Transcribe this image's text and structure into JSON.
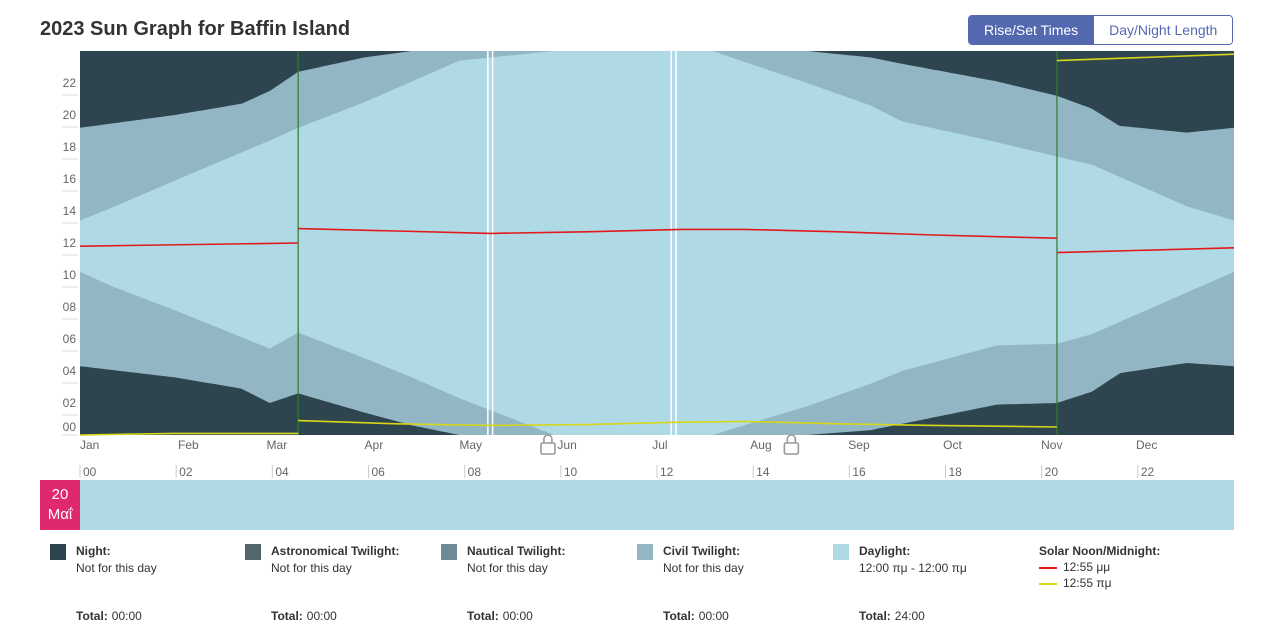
{
  "title": "2023 Sun Graph for Baffin Island",
  "toggle": {
    "rise_set": "Rise/Set Times",
    "day_night": "Day/Night Length"
  },
  "colors": {
    "night": "#2e444f",
    "astro": "#56666f",
    "nautical": "#6d8a96",
    "civil": "#93b6c5",
    "daylight": "#b0d9e6",
    "noon": "#e01a1a",
    "midnight": "#d6d61a",
    "dst": "#2e7d2e",
    "date_accent": "#e0286e"
  },
  "chart_data": {
    "type": "area",
    "title": "2023 Sun Graph for Baffin Island",
    "y_ticks": [
      "00",
      "02",
      "04",
      "06",
      "08",
      "10",
      "12",
      "14",
      "16",
      "18",
      "20",
      "22"
    ],
    "ylim": [
      0,
      24
    ],
    "month_labels": [
      "Jan",
      "Feb",
      "Mar",
      "Apr",
      "May",
      "Jun",
      "Jul",
      "Aug",
      "Sep",
      "Oct",
      "Nov",
      "Dec"
    ],
    "hour_ticks": [
      "00",
      "02",
      "04",
      "06",
      "08",
      "10",
      "12",
      "14",
      "16",
      "18",
      "20",
      "22"
    ],
    "dst_start_day": 69,
    "dst_end_day": 309,
    "series": [
      {
        "name": "Night",
        "x_day": [
          0,
          30,
          60,
          69,
          90,
          120,
          135,
          150,
          172,
          190,
          210,
          230,
          260,
          290,
          309,
          320,
          350,
          365
        ],
        "dawn": [
          6.5,
          5.6,
          4.5,
          5.0,
          3.9,
          2.8,
          1.5,
          0,
          0,
          0,
          0,
          1.4,
          2.9,
          4.5,
          4.6,
          5.6,
          6.6,
          6.6
        ],
        "dusk": [
          17.0,
          18.2,
          19.3,
          20.4,
          21.3,
          22.8,
          23.7,
          24,
          24,
          24,
          24,
          22.6,
          21.3,
          19.9,
          18.7,
          17.7,
          16.8,
          17.0
        ]
      },
      {
        "name": "Astronomical Twilight",
        "x_day": [
          0,
          30,
          60,
          69,
          90,
          115,
          130,
          150,
          172,
          200,
          225,
          240,
          260,
          290,
          309,
          320,
          350,
          365
        ],
        "dawn": [
          5.6,
          4.8,
          3.5,
          4.2,
          3.0,
          1.5,
          0,
          0,
          0,
          0,
          0,
          1.0,
          2.3,
          3.6,
          3.7,
          4.8,
          5.7,
          5.6
        ],
        "dusk": [
          18.0,
          19.0,
          20.2,
          21.3,
          22.2,
          23.8,
          24,
          24,
          24,
          24,
          24,
          23.0,
          21.8,
          20.6,
          19.5,
          18.6,
          17.8,
          18.0
        ]
      },
      {
        "name": "Nautical Twilight",
        "x_day": [
          0,
          30,
          60,
          69,
          90,
          110,
          125,
          150,
          172,
          200,
          230,
          245,
          260,
          290,
          309,
          320,
          350,
          365
        ],
        "dawn": [
          4.3,
          3.6,
          2.6,
          3.4,
          2.2,
          0.9,
          0,
          0,
          0,
          0,
          0,
          0.5,
          1.6,
          2.8,
          2.9,
          3.6,
          4.5,
          4.3
        ],
        "dusk": [
          19.2,
          20.0,
          21.0,
          22.0,
          23.0,
          24,
          24,
          24,
          24,
          24,
          24,
          23.6,
          22.4,
          21.3,
          20.3,
          19.5,
          18.9,
          19.2
        ]
      },
      {
        "name": "Civil Twilight",
        "x_day": [
          0,
          15,
          30,
          60,
          69,
          90,
          105,
          120,
          150,
          172,
          200,
          230,
          250,
          260,
          290,
          309,
          320,
          350,
          365
        ],
        "dawn": [
          7.8,
          6.2,
          5.0,
          2.0,
          2.6,
          1.4,
          0.6,
          0,
          0,
          0,
          0,
          0,
          0.3,
          0.7,
          1.9,
          2.0,
          2.7,
          6.6,
          7.8
        ],
        "dusk": [
          15.8,
          17.4,
          18.8,
          21.5,
          22.7,
          23.6,
          24,
          24,
          24,
          24,
          24,
          24,
          23.6,
          23.2,
          22.1,
          21.2,
          20.4,
          16.7,
          15.8
        ]
      }
    ],
    "daylight_x_day": [
      0,
      10,
      30,
      60,
      69,
      90,
      105,
      120,
      150,
      172,
      200,
      230,
      250,
      260,
      290,
      309,
      320,
      350,
      365
    ],
    "daylight_rise": [
      10.2,
      9.3,
      7.8,
      5.4,
      6.4,
      4.8,
      3.6,
      2.3,
      0,
      0,
      0,
      1.8,
      3.2,
      4.0,
      5.6,
      5.7,
      6.3,
      8.9,
      10.2
    ],
    "daylight_set": [
      13.4,
      14.2,
      15.9,
      18.4,
      19.2,
      20.8,
      22.1,
      23.4,
      24,
      24,
      24,
      22.0,
      20.6,
      19.6,
      18.3,
      17.4,
      16.9,
      14.3,
      13.4
    ],
    "solar_noon_x_day": [
      0,
      69,
      69,
      100,
      130,
      160,
      190,
      210,
      240,
      270,
      309,
      309,
      365
    ],
    "solar_noon": [
      11.8,
      12.0,
      12.9,
      12.75,
      12.6,
      12.7,
      12.85,
      12.85,
      12.7,
      12.5,
      12.3,
      11.4,
      11.7
    ],
    "solar_midnight_x_day": [
      0,
      30,
      60,
      69,
      69,
      100,
      130,
      160,
      190,
      210,
      240,
      270,
      309,
      309,
      365
    ],
    "solar_midnight": [
      0,
      0.1,
      0.1,
      0.1,
      0.9,
      0.7,
      0.6,
      0.65,
      0.8,
      0.85,
      0.7,
      0.6,
      0.5,
      23.4,
      23.8
    ]
  },
  "selected_date": {
    "day": "20",
    "month": "Μαΐ"
  },
  "legend": [
    {
      "key": "night",
      "name": "Night:",
      "value": "Not for this day",
      "total_label": "Total:",
      "total": "00:00"
    },
    {
      "key": "astro",
      "name": "Astronomical Twilight:",
      "value": "Not for this day",
      "total_label": "Total:",
      "total": "00:00"
    },
    {
      "key": "nautical",
      "name": "Nautical Twilight:",
      "value": "Not for this day",
      "total_label": "Total:",
      "total": "00:00"
    },
    {
      "key": "civil",
      "name": "Civil Twilight:",
      "value": "Not for this day",
      "total_label": "Total:",
      "total": "00:00"
    },
    {
      "key": "daylight",
      "name": "Daylight:",
      "value": "12:00 πμ - 12:00 πμ",
      "total_label": "Total:",
      "total": "24:00"
    }
  ],
  "solar": {
    "name": "Solar Noon/Midnight:",
    "noon": "12:55 μμ",
    "midnight": "12:55 πμ"
  }
}
